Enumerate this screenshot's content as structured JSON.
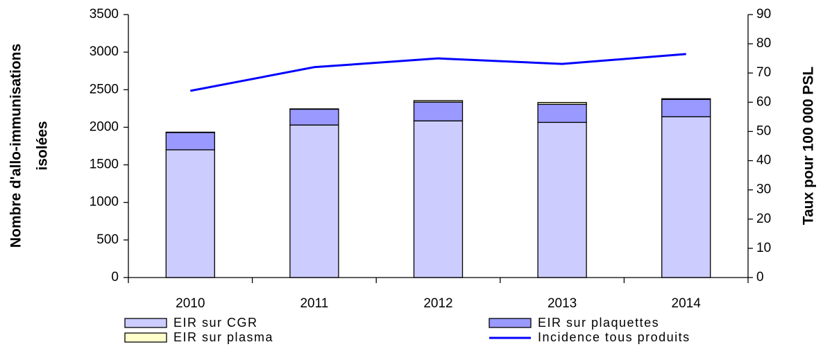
{
  "chart_data": {
    "type": "bar",
    "categories": [
      "2010",
      "2011",
      "2012",
      "2013",
      "2014"
    ],
    "series": [
      {
        "name": "EIR sur CGR",
        "color": "#ccccff",
        "values": [
          1700,
          2030,
          2085,
          2065,
          2140
        ]
      },
      {
        "name": "EIR sur plaquettes",
        "color": "#9999ff",
        "values": [
          230,
          210,
          250,
          240,
          230
        ]
      },
      {
        "name": "EIR sur plasma",
        "color": "#ffffcc",
        "values": [
          5,
          5,
          20,
          25,
          10
        ]
      },
      {
        "name": "Incidence tous produits",
        "color": "#0000ff",
        "type": "line",
        "axis": "y2",
        "values": [
          63.9,
          72,
          75,
          73.1,
          76.5
        ]
      }
    ],
    "stacked": true,
    "y_label": [
      "Nombre d'allo-immunisations",
      "isolées"
    ],
    "y2_label": "Taux pour 100 000 PSL",
    "ylim": [
      0,
      3500
    ],
    "yticks": [
      0,
      500,
      1000,
      1500,
      2000,
      2500,
      3000,
      3500
    ],
    "y2lim": [
      0,
      90
    ],
    "y2ticks": [
      0,
      10,
      20,
      30,
      40,
      50,
      60,
      70,
      80,
      90
    ],
    "legend": "bottom"
  }
}
